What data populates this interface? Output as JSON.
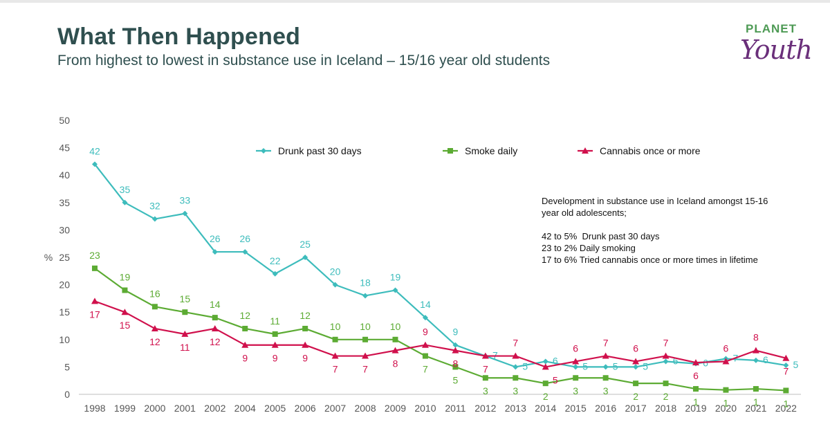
{
  "header": {
    "title": "What Then Happened",
    "subtitle": "From highest to lowest in substance use in Iceland – 15/16 year old students"
  },
  "logo": {
    "line1": "PLANET",
    "line2": "Youth",
    "reg": "®"
  },
  "annotation": {
    "line1": "Development in substance use in Iceland amongst 15-16",
    "line2": "year old adolescents;",
    "line3": "42 to 5%  Drunk past 30 days",
    "line4": "23 to 2% Daily smoking",
    "line5": "17 to 6% Tried cannabis once or more times in lifetime"
  },
  "chart_data": {
    "type": "line",
    "ylabel": "%",
    "ylim": [
      0,
      50
    ],
    "yticks": [
      0,
      5,
      10,
      15,
      20,
      25,
      30,
      35,
      40,
      45,
      50
    ],
    "grid": false,
    "legend_position": "top",
    "categories": [
      "1998",
      "1999",
      "2000",
      "2001",
      "2002",
      "2004",
      "2005",
      "2006",
      "2007",
      "2008",
      "2009",
      "2010",
      "2011",
      "2012",
      "2013",
      "2014",
      "2015",
      "2016",
      "2017",
      "2018",
      "2019",
      "2020",
      "2021",
      "2022"
    ],
    "series": [
      {
        "name": "Drunk past 30 days",
        "color": "#3dbcbc",
        "marker": "diamond",
        "values": [
          42,
          35,
          32,
          33,
          26,
          26,
          22,
          25,
          20,
          18,
          19,
          14,
          9,
          7,
          5,
          6,
          5,
          5,
          5,
          6,
          5.6,
          6.5,
          6.2,
          5.3
        ],
        "labels": [
          "42",
          "35",
          "32",
          "33",
          "26",
          "26",
          "22",
          "25",
          "20",
          "18",
          "19",
          "14",
          "9",
          "7",
          "5",
          "6",
          "5",
          "5",
          "5",
          "6",
          "6",
          "7",
          "6",
          "5"
        ]
      },
      {
        "name": "Smoke daily",
        "color": "#5cab33",
        "marker": "square",
        "values": [
          23,
          19,
          16,
          15,
          14,
          12,
          11,
          12,
          10,
          10,
          10,
          7,
          5,
          3,
          3,
          2,
          3,
          3,
          2,
          2,
          1,
          0.8,
          1,
          0.7
        ],
        "labels": [
          "23",
          "19",
          "16",
          "15",
          "14",
          "12",
          "11",
          "12",
          "10",
          "10",
          "10",
          "7",
          "5",
          "3",
          "3",
          "2",
          "3",
          "3",
          "2",
          "2",
          "1",
          "1",
          "1",
          "1"
        ]
      },
      {
        "name": "Cannabis once or more",
        "color": "#d0104c",
        "marker": "triangle",
        "values": [
          17,
          15,
          12,
          11,
          12,
          9,
          9,
          9,
          7,
          7,
          8,
          9,
          8,
          7,
          7,
          5,
          6,
          7,
          6,
          7,
          5.8,
          6,
          8,
          6.6
        ],
        "labels": [
          "17",
          "15",
          "12",
          "11",
          "12",
          "9",
          "9",
          "9",
          "7",
          "7",
          "8",
          "9",
          "8",
          "7",
          "7",
          "5",
          "6",
          "7",
          "6",
          "7",
          "6",
          "6",
          "8",
          "7"
        ]
      }
    ]
  }
}
